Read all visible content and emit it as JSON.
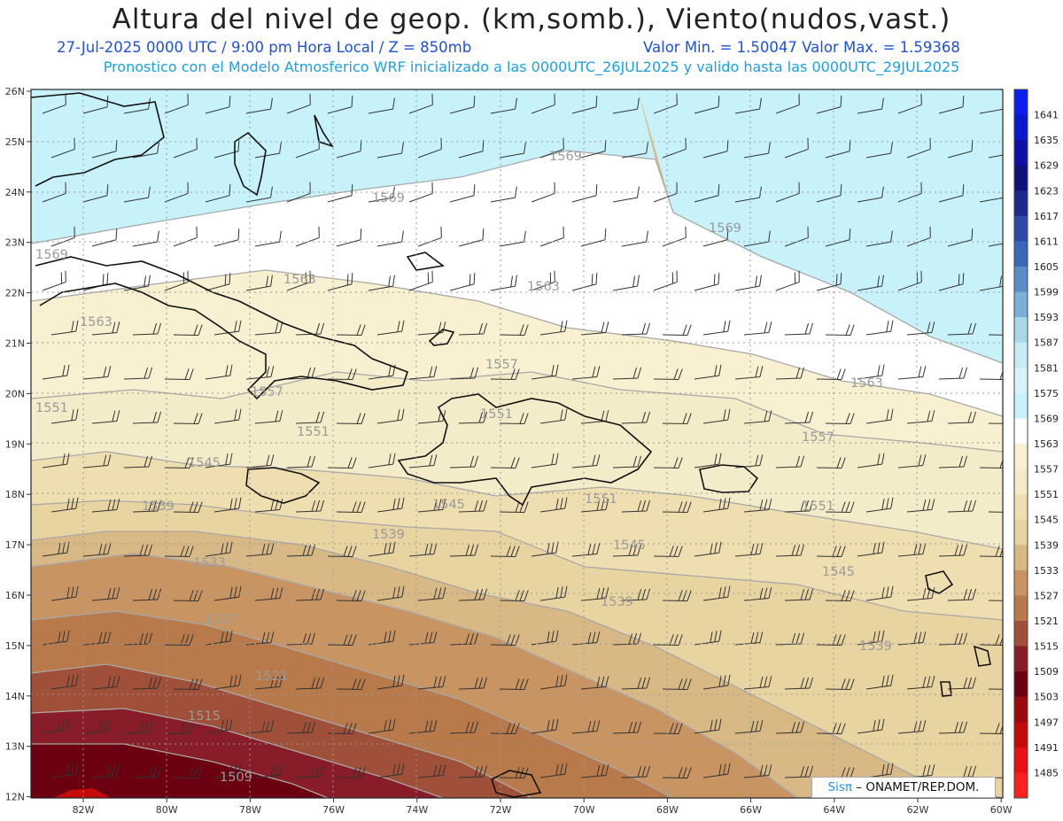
{
  "header": {
    "title": "Altura del nivel de geop. (km,somb.), Viento(nudos,vast.)",
    "date_line": "27-Jul-2025   0000 UTC / 9:00 pm Hora Local / Z = 850mb",
    "minmax_line": "Valor Min. = 1.50047   Valor Max. = 1.59368",
    "model_line": "Pronostico con el Modelo Atmosferico WRF inicializado a las 0000UTC_26JUL2025 y valido hasta las  0000UTC_29JUL2025"
  },
  "axes": {
    "lat_labels": [
      "26N",
      "25N",
      "24N",
      "23N",
      "22N",
      "21N",
      "20N",
      "19N",
      "18N",
      "17N",
      "16N",
      "15N",
      "14N",
      "13N",
      "12N"
    ],
    "lon_labels": [
      "82W",
      "80W",
      "78W",
      "76W",
      "74W",
      "72W",
      "70W",
      "68W",
      "66W",
      "64W",
      "62W",
      "60W"
    ]
  },
  "colorbar": {
    "levels": [
      "1641",
      "1635",
      "1629",
      "1623",
      "1617",
      "1611",
      "1605",
      "1599",
      "1593",
      "1587",
      "1581",
      "1575",
      "1569",
      "1563",
      "1557",
      "1551",
      "1545",
      "1539",
      "1533",
      "1527",
      "1521",
      "1515",
      "1509",
      "1503",
      "1497",
      "1491",
      "1485"
    ],
    "colors": [
      "#0a1ef0",
      "#0a18cc",
      "#0e10a8",
      "#10107a",
      "#1c2a8c",
      "#3048a8",
      "#3a68b8",
      "#5a8cc8",
      "#7ab0d8",
      "#a8d8ea",
      "#c6ecf4",
      "#d8f4f8",
      "#c8f2fa",
      "#ffffff",
      "#f8f0d0",
      "#f4ebc8",
      "#efdfb0",
      "#e8d4a0",
      "#d8b884",
      "#c89462",
      "#b87a4a",
      "#a05038",
      "#881c28",
      "#6a0010",
      "#9a0a0a",
      "#c40a0a",
      "#e81010",
      "#fa2020"
    ]
  },
  "contour_labels": [
    "1569",
    "1569",
    "1569",
    "1569",
    "1563",
    "1563",
    "1563",
    "1563",
    "1557",
    "1557",
    "1557",
    "1551",
    "1551",
    "1551",
    "1551",
    "1551",
    "1545",
    "1545",
    "1545",
    "1545",
    "1539",
    "1539",
    "1539",
    "1539",
    "1533",
    "1527",
    "1521",
    "1515",
    "1509"
  ],
  "credit": {
    "brand": "Sisπ",
    "text": " – ONAMET/REP.DOM."
  }
}
